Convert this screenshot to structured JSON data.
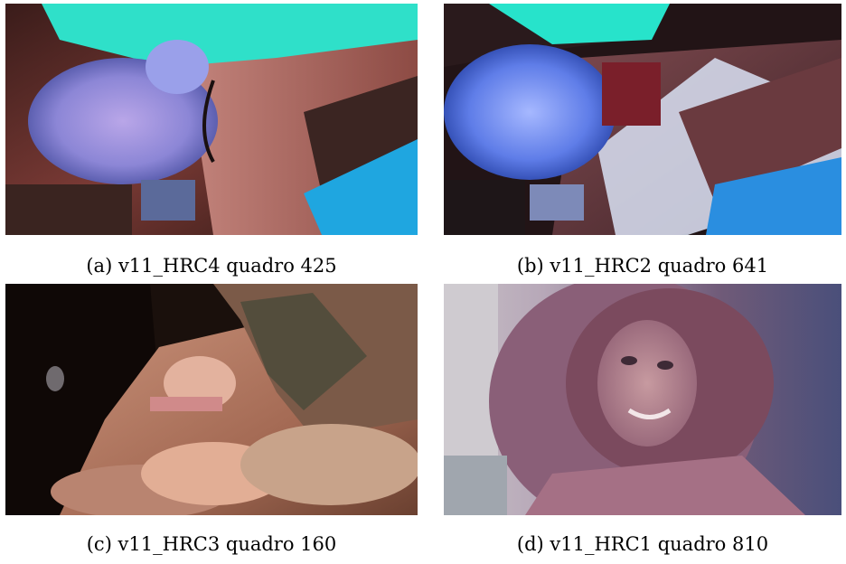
{
  "figures": [
    {
      "id": "a",
      "caption": "(a) v11_HRC4 quadro 425"
    },
    {
      "id": "b",
      "caption": "(b) v11_HRC2 quadro 641"
    },
    {
      "id": "c",
      "caption": "(c) v11_HRC3 quadro 160"
    },
    {
      "id": "d",
      "caption": "(d) v11_HRC1 quadro 810"
    }
  ]
}
